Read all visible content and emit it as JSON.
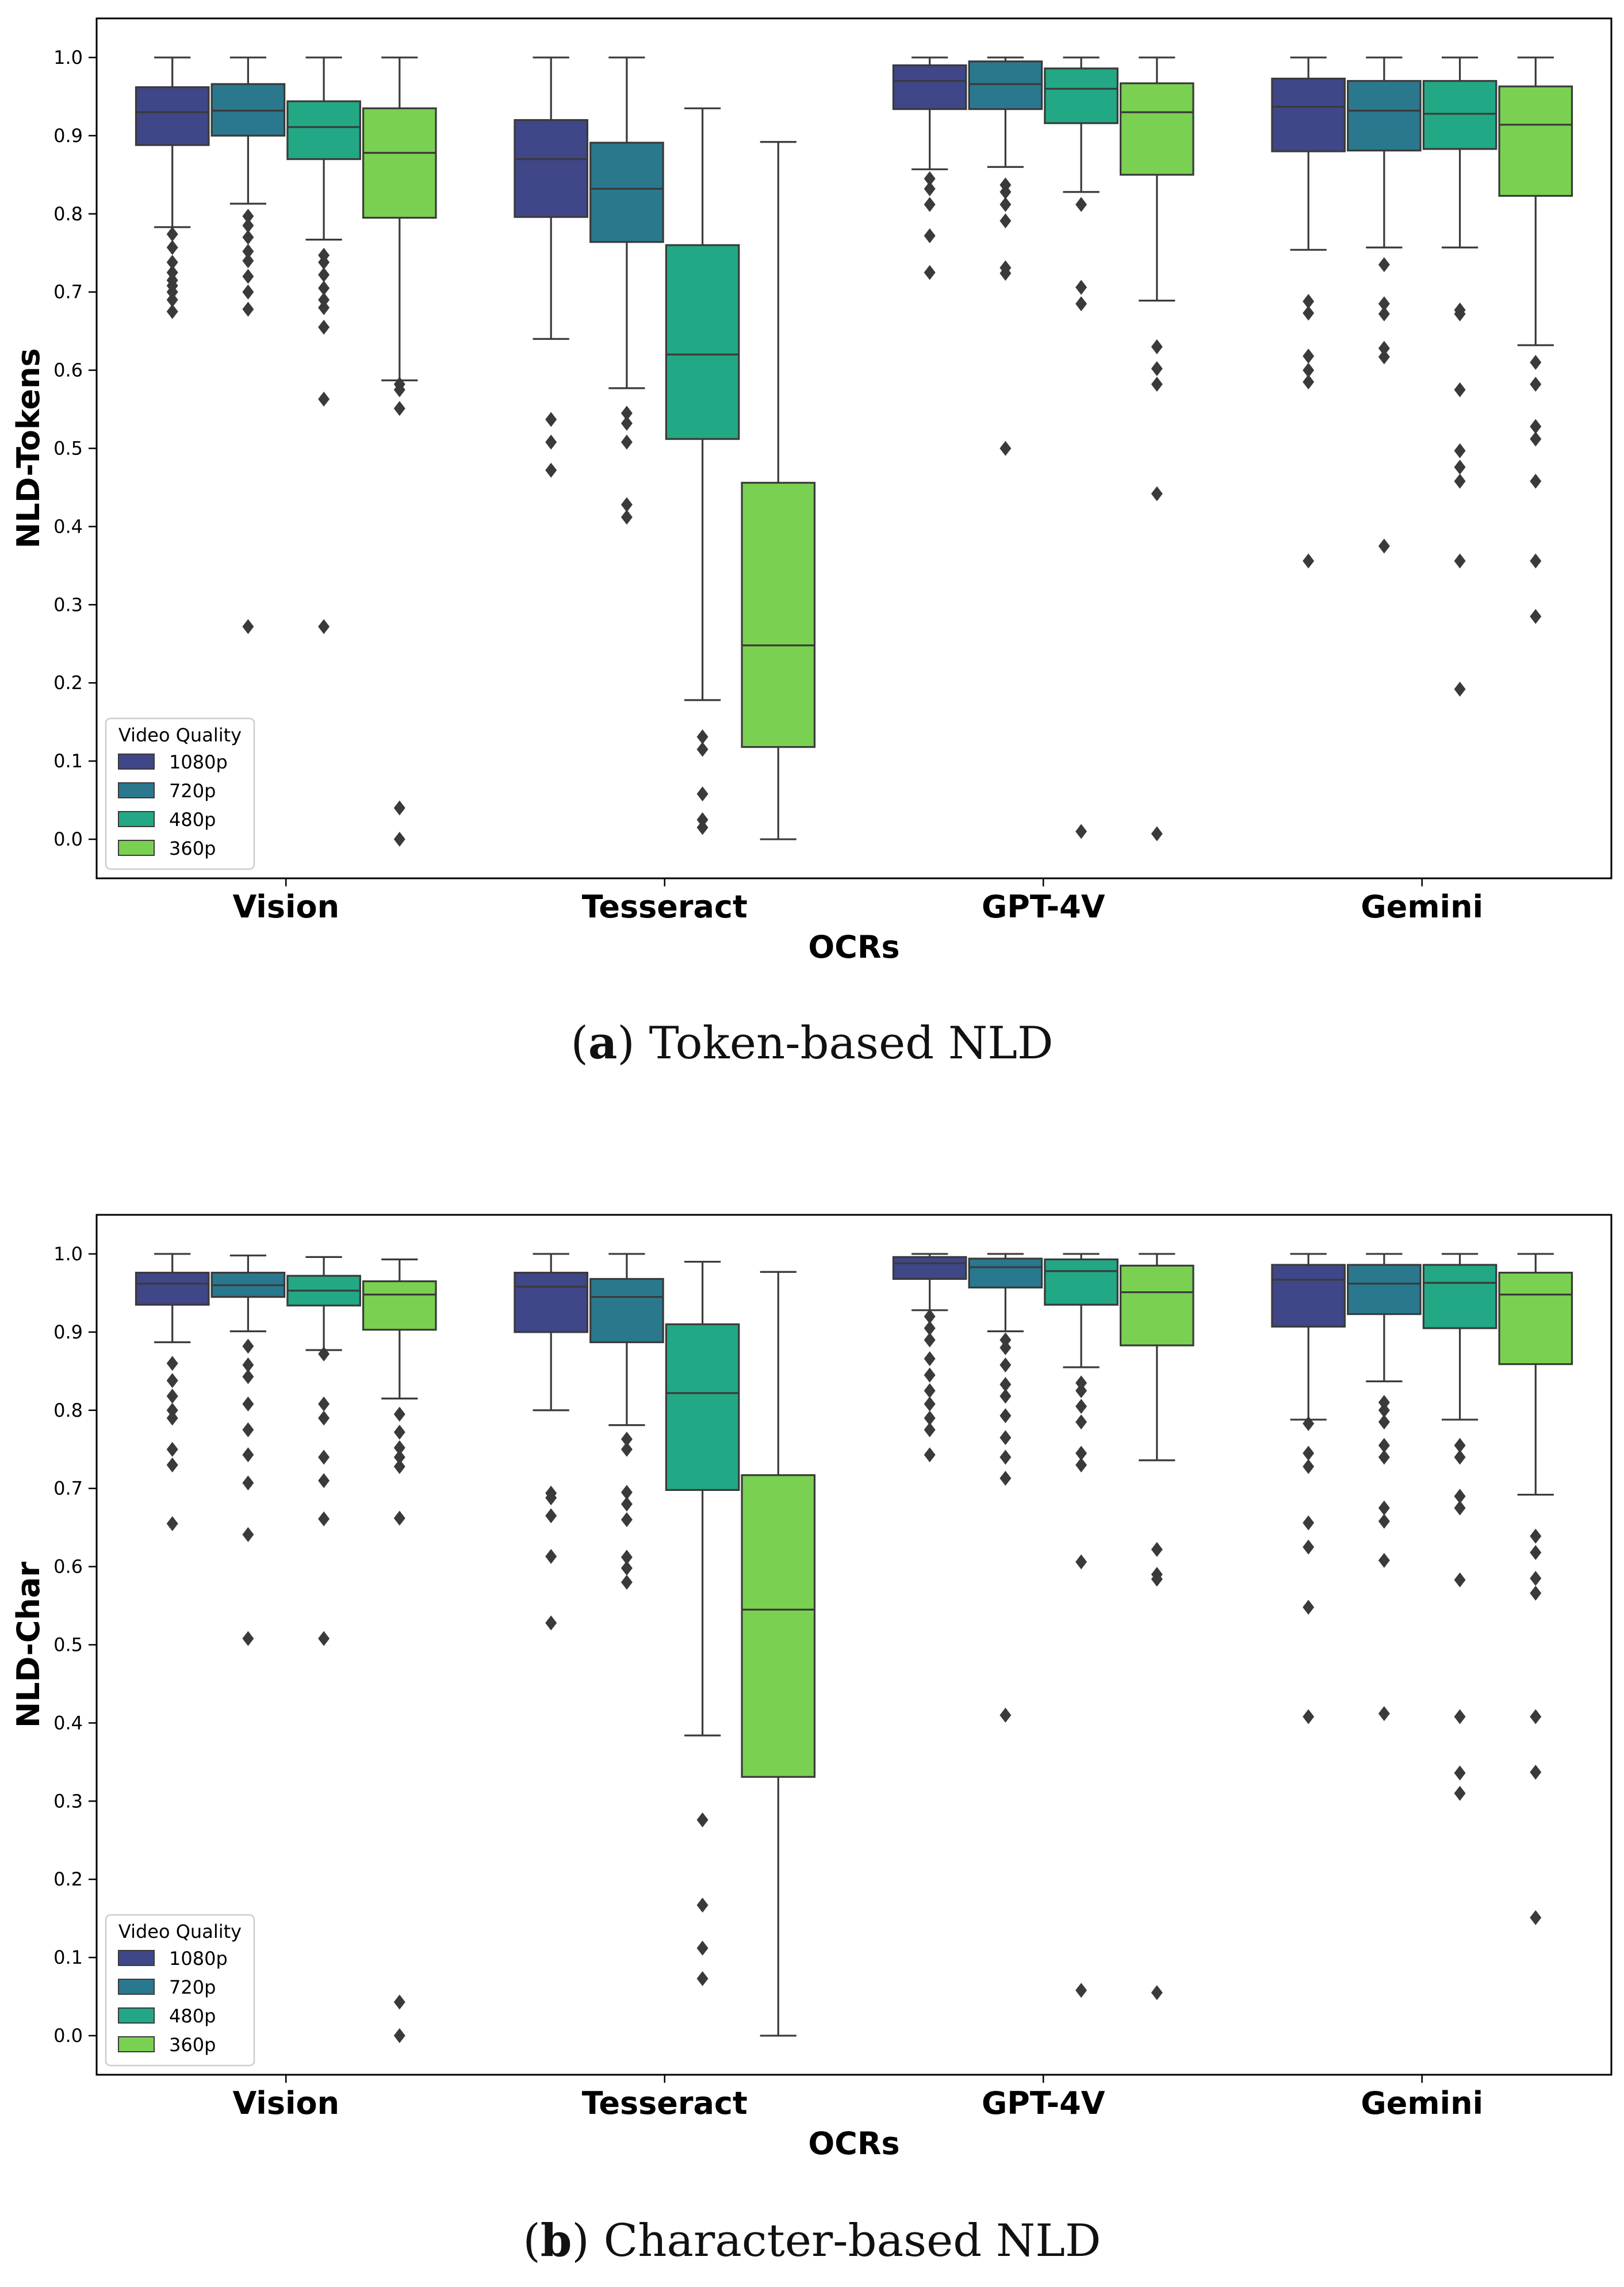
{
  "chart_data": [
    {
      "type": "box",
      "panel_label": "a",
      "caption": "Token-based NLD",
      "xlabel": "OCRs",
      "ylabel": "NLD-Tokens",
      "ylim": [
        -0.05,
        1.05
      ],
      "yticks": [
        "0.0",
        "0.1",
        "0.2",
        "0.3",
        "0.4",
        "0.5",
        "0.6",
        "0.7",
        "0.8",
        "0.9",
        "1.0"
      ],
      "categories": [
        "Vision",
        "Tesseract",
        "GPT-4V",
        "Gemini"
      ],
      "legend": {
        "title": "Video Quality",
        "position": "lower-left"
      },
      "series": [
        {
          "name": "1080p",
          "color": "#3f4788",
          "boxes": [
            {
              "q1": 0.888,
              "med": 0.93,
              "q3": 0.962,
              "wlo": 0.783,
              "whi": 1.0,
              "out": [
                0.774,
                0.757,
                0.738,
                0.725,
                0.715,
                0.708,
                0.7,
                0.69,
                0.675
              ]
            },
            {
              "q1": 0.796,
              "med": 0.87,
              "q3": 0.92,
              "wlo": 0.64,
              "whi": 1.0,
              "out": [
                0.537,
                0.508,
                0.472
              ]
            },
            {
              "q1": 0.934,
              "med": 0.97,
              "q3": 0.99,
              "wlo": 0.857,
              "whi": 1.0,
              "out": [
                0.845,
                0.832,
                0.812,
                0.772,
                0.725
              ]
            },
            {
              "q1": 0.88,
              "med": 0.937,
              "q3": 0.973,
              "wlo": 0.754,
              "whi": 1.0,
              "out": [
                0.688,
                0.673,
                0.618,
                0.6,
                0.585,
                0.356
              ]
            }
          ]
        },
        {
          "name": "720p",
          "color": "#2a788e",
          "boxes": [
            {
              "q1": 0.9,
              "med": 0.932,
              "q3": 0.966,
              "wlo": 0.813,
              "whi": 1.0,
              "out": [
                0.797,
                0.785,
                0.77,
                0.752,
                0.74,
                0.72,
                0.7,
                0.678,
                0.272
              ]
            },
            {
              "q1": 0.764,
              "med": 0.832,
              "q3": 0.891,
              "wlo": 0.577,
              "whi": 1.0,
              "out": [
                0.545,
                0.532,
                0.508,
                0.428,
                0.412
              ]
            },
            {
              "q1": 0.934,
              "med": 0.966,
              "q3": 0.995,
              "wlo": 0.86,
              "whi": 1.0,
              "out": [
                0.837,
                0.828,
                0.812,
                0.791,
                0.731,
                0.724,
                0.5
              ]
            },
            {
              "q1": 0.881,
              "med": 0.932,
              "q3": 0.97,
              "wlo": 0.757,
              "whi": 1.0,
              "out": [
                0.735,
                0.685,
                0.672,
                0.628,
                0.617,
                0.375
              ]
            }
          ]
        },
        {
          "name": "480p",
          "color": "#22a884",
          "boxes": [
            {
              "q1": 0.87,
              "med": 0.911,
              "q3": 0.944,
              "wlo": 0.767,
              "whi": 1.0,
              "out": [
                0.747,
                0.738,
                0.722,
                0.705,
                0.69,
                0.68,
                0.655,
                0.563,
                0.272
              ]
            },
            {
              "q1": 0.512,
              "med": 0.62,
              "q3": 0.76,
              "wlo": 0.178,
              "whi": 0.935,
              "out": [
                0.131,
                0.115,
                0.058,
                0.025,
                0.015
              ]
            },
            {
              "q1": 0.916,
              "med": 0.96,
              "q3": 0.986,
              "wlo": 0.828,
              "whi": 1.0,
              "out": [
                0.812,
                0.706,
                0.685,
                0.01
              ]
            },
            {
              "q1": 0.883,
              "med": 0.928,
              "q3": 0.97,
              "wlo": 0.757,
              "whi": 1.0,
              "out": [
                0.677,
                0.672,
                0.575,
                0.497,
                0.476,
                0.458,
                0.356,
                0.192
              ]
            }
          ]
        },
        {
          "name": "360p",
          "color": "#7ad151",
          "boxes": [
            {
              "q1": 0.795,
              "med": 0.878,
              "q3": 0.935,
              "wlo": 0.587,
              "whi": 1.0,
              "out": [
                0.582,
                0.575,
                0.551,
                0.04,
                0.0
              ]
            },
            {
              "q1": 0.118,
              "med": 0.248,
              "q3": 0.456,
              "wlo": 0.0,
              "whi": 0.892,
              "out": []
            },
            {
              "q1": 0.85,
              "med": 0.93,
              "q3": 0.967,
              "wlo": 0.689,
              "whi": 1.0,
              "out": [
                0.63,
                0.602,
                0.582,
                0.442,
                0.007
              ]
            },
            {
              "q1": 0.823,
              "med": 0.914,
              "q3": 0.963,
              "wlo": 0.632,
              "whi": 1.0,
              "out": [
                0.61,
                0.582,
                0.528,
                0.512,
                0.458,
                0.356,
                0.285
              ]
            }
          ]
        }
      ]
    },
    {
      "type": "box",
      "panel_label": "b",
      "caption": "Character-based NLD",
      "xlabel": "OCRs",
      "ylabel": "NLD-Char",
      "ylim": [
        -0.05,
        1.05
      ],
      "yticks": [
        "0.0",
        "0.1",
        "0.2",
        "0.3",
        "0.4",
        "0.5",
        "0.6",
        "0.7",
        "0.8",
        "0.9",
        "1.0"
      ],
      "categories": [
        "Vision",
        "Tesseract",
        "GPT-4V",
        "Gemini"
      ],
      "legend": {
        "title": "Video Quality",
        "position": "lower-left"
      },
      "series": [
        {
          "name": "1080p",
          "color": "#3f4788",
          "boxes": [
            {
              "q1": 0.935,
              "med": 0.962,
              "q3": 0.976,
              "wlo": 0.887,
              "whi": 1.0,
              "out": [
                0.86,
                0.838,
                0.818,
                0.8,
                0.79,
                0.75,
                0.73,
                0.655
              ]
            },
            {
              "q1": 0.9,
              "med": 0.958,
              "q3": 0.976,
              "wlo": 0.8,
              "whi": 1.0,
              "out": [
                0.694,
                0.688,
                0.665,
                0.613,
                0.528
              ]
            },
            {
              "q1": 0.968,
              "med": 0.988,
              "q3": 0.996,
              "wlo": 0.928,
              "whi": 1.0,
              "out": [
                0.92,
                0.905,
                0.89,
                0.866,
                0.845,
                0.825,
                0.808,
                0.79,
                0.775,
                0.743
              ]
            },
            {
              "q1": 0.907,
              "med": 0.967,
              "q3": 0.986,
              "wlo": 0.788,
              "whi": 1.0,
              "out": [
                0.783,
                0.745,
                0.728,
                0.656,
                0.625,
                0.548,
                0.408
              ]
            }
          ]
        },
        {
          "name": "720p",
          "color": "#2a788e",
          "boxes": [
            {
              "q1": 0.945,
              "med": 0.96,
              "q3": 0.976,
              "wlo": 0.901,
              "whi": 0.998,
              "out": [
                0.882,
                0.858,
                0.843,
                0.808,
                0.775,
                0.743,
                0.707,
                0.641,
                0.508
              ]
            },
            {
              "q1": 0.887,
              "med": 0.945,
              "q3": 0.968,
              "wlo": 0.781,
              "whi": 1.0,
              "out": [
                0.763,
                0.75,
                0.695,
                0.68,
                0.66,
                0.612,
                0.598,
                0.58
              ]
            },
            {
              "q1": 0.957,
              "med": 0.983,
              "q3": 0.994,
              "wlo": 0.901,
              "whi": 1.0,
              "out": [
                0.89,
                0.88,
                0.858,
                0.833,
                0.818,
                0.793,
                0.765,
                0.74,
                0.713,
                0.41
              ]
            },
            {
              "q1": 0.923,
              "med": 0.962,
              "q3": 0.986,
              "wlo": 0.837,
              "whi": 1.0,
              "out": [
                0.81,
                0.8,
                0.785,
                0.755,
                0.74,
                0.675,
                0.658,
                0.608,
                0.412
              ]
            }
          ]
        },
        {
          "name": "480p",
          "color": "#22a884",
          "boxes": [
            {
              "q1": 0.934,
              "med": 0.953,
              "q3": 0.972,
              "wlo": 0.877,
              "whi": 0.996,
              "out": [
                0.872,
                0.808,
                0.79,
                0.74,
                0.71,
                0.661,
                0.508
              ]
            },
            {
              "q1": 0.698,
              "med": 0.822,
              "q3": 0.91,
              "wlo": 0.384,
              "whi": 0.99,
              "out": [
                0.276,
                0.167,
                0.112,
                0.073
              ]
            },
            {
              "q1": 0.935,
              "med": 0.978,
              "q3": 0.993,
              "wlo": 0.855,
              "whi": 1.0,
              "out": [
                0.835,
                0.825,
                0.805,
                0.785,
                0.745,
                0.73,
                0.606,
                0.058
              ]
            },
            {
              "q1": 0.905,
              "med": 0.963,
              "q3": 0.986,
              "wlo": 0.788,
              "whi": 1.0,
              "out": [
                0.755,
                0.74,
                0.69,
                0.675,
                0.583,
                0.408,
                0.336,
                0.31
              ]
            }
          ]
        },
        {
          "name": "360p",
          "color": "#7ad151",
          "boxes": [
            {
              "q1": 0.903,
              "med": 0.948,
              "q3": 0.965,
              "wlo": 0.815,
              "whi": 0.993,
              "out": [
                0.795,
                0.772,
                0.752,
                0.74,
                0.728,
                0.662,
                0.043,
                0.0
              ]
            },
            {
              "q1": 0.331,
              "med": 0.545,
              "q3": 0.717,
              "wlo": 0.0,
              "whi": 0.977,
              "out": []
            },
            {
              "q1": 0.883,
              "med": 0.951,
              "q3": 0.985,
              "wlo": 0.736,
              "whi": 1.0,
              "out": [
                0.622,
                0.59,
                0.584,
                0.055
              ]
            },
            {
              "q1": 0.859,
              "med": 0.948,
              "q3": 0.976,
              "wlo": 0.692,
              "whi": 1.0,
              "out": [
                0.639,
                0.618,
                0.585,
                0.566,
                0.408,
                0.337,
                0.151
              ]
            }
          ]
        }
      ]
    }
  ]
}
